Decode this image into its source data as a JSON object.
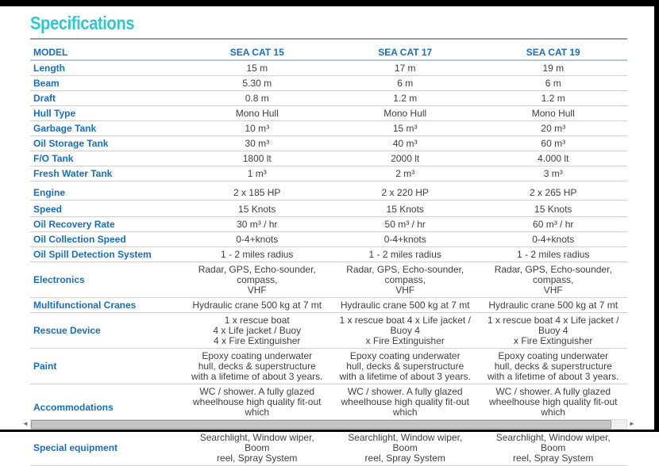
{
  "page": {
    "title": "Specifications"
  },
  "table": {
    "header": {
      "label": "MODEL",
      "columns": [
        "SEA CAT 15",
        "SEA CAT 17",
        "SEA CAT 19"
      ]
    },
    "rows": [
      {
        "label": "Length",
        "values": [
          "15 m",
          "17 m",
          "19 m"
        ]
      },
      {
        "label": "Beam",
        "values": [
          "5.30 m",
          "6 m",
          "6 m"
        ]
      },
      {
        "label": "Draft",
        "values": [
          "0.8 m",
          "1.2 m",
          "1.2 m"
        ]
      },
      {
        "label": "Hull Type",
        "values": [
          "Mono Hull",
          "Mono Hull",
          "Mono Hull"
        ]
      },
      {
        "label": "Garbage Tank",
        "values": [
          "10 m³",
          "15 m³",
          "20 m³"
        ]
      },
      {
        "label": "Oil Storage Tank",
        "values": [
          "30 m³",
          "40 m³",
          "60 m³"
        ]
      },
      {
        "label": "F/O Tank",
        "values": [
          "1800 lt",
          "2000 lt",
          "4.000 lt"
        ]
      },
      {
        "label": "Fresh Water Tank",
        "values": [
          "1 m³",
          "2 m³",
          "3 m³"
        ]
      },
      {
        "label": "Engine",
        "values": [
          "2 x 185 HP",
          "2 x 220 HP",
          "2 x 265 HP"
        ]
      },
      {
        "label": "Speed",
        "values": [
          "15 Knots",
          "15 Knots",
          "15 Knots"
        ]
      },
      {
        "label": "Oil Recovery Rate",
        "values": [
          "30 m³ / hr",
          "50 m³ / hr",
          "60 m³ / hr"
        ]
      },
      {
        "label": "Oil Collection Speed",
        "values": [
          "0-4+knots",
          "0-4+knots",
          "0-4+knots"
        ]
      },
      {
        "label": "Oil Spill Detection System",
        "values": [
          "1 - 2 miles radius",
          "1 - 2 miles radius",
          "1 - 2 miles radius"
        ]
      },
      {
        "label": "Electronics",
        "values": [
          "Radar, GPS, Echo-sounder, compass,\nVHF",
          "Radar, GPS, Echo-sounder, compass,\nVHF",
          "Radar, GPS, Echo-sounder, compass,\nVHF"
        ]
      },
      {
        "label": "Multifunctional Cranes",
        "values": [
          "Hydraulic crane 500 kg at 7 mt",
          "Hydraulic crane 500 kg at 7 mt",
          "Hydraulic crane 500 kg at 7 mt"
        ]
      },
      {
        "label": "Rescue Device",
        "values": [
          "1 x rescue boat\n4 x Life jacket / Buoy\n4 x Fire Extinguisher",
          "1 x rescue boat 4 x Life jacket / Buoy 4\nx Fire Extinguisher",
          "1 x rescue boat 4 x Life jacket / Buoy 4\nx Fire Extinguisher"
        ]
      },
      {
        "label": "Paint",
        "values": [
          "Epoxy coating underwater\nhull, decks & superstructure\nwith a lifetime of about 3 years.",
          "Epoxy coating underwater\nhull, decks & superstructure\nwith a lifetime of about 3 years.",
          "Epoxy coating underwater\nhull, decks & superstructure\nwith a lifetime of about 3 years."
        ]
      },
      {
        "label": "Accommodations",
        "values": [
          "WC / shower. A fully glazed\nwheelhouse high quality fit-out which\nincludes seats.",
          "WC / shower. A fully glazed\nwheelhouse high quality fit-out which\nincludes seats.",
          "WC / shower. A fully glazed\nwheelhouse high quality fit-out which\nincludes seats."
        ]
      },
      {
        "label": "Special equipment",
        "values": [
          "Searchlight, Window wiper, Boom\nreel, Spray System",
          "Searchlight, Window wiper, Boom\nreel, Spray System",
          "Searchlight, Window wiper, Boom\nreel, Spray System"
        ]
      }
    ]
  },
  "scrollbar": {
    "left_arrow": "◄",
    "right_arrow": "►"
  },
  "colors": {
    "title_teal": "#35c4ca",
    "label_blue": "#1b6db8",
    "value_gray": "#3f3f3f",
    "row_border": "#d0d0d0",
    "header_border": "#b7c7d7",
    "frame_black": "#000000"
  }
}
